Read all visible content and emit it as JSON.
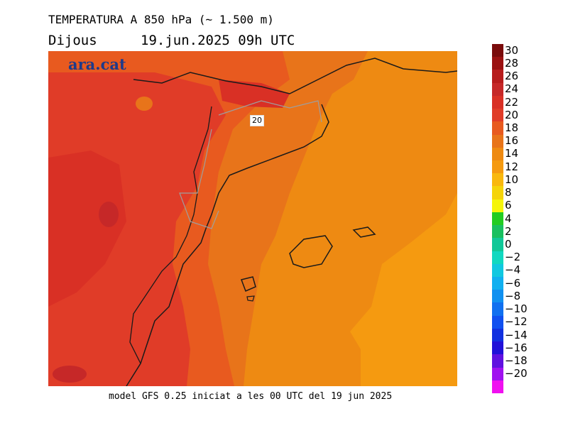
{
  "header": {
    "title": "TEMPERATURA A 850 hPa (~ 1.500 m)",
    "day": "Dijous",
    "datetime": "19.jun.2025 09h UTC"
  },
  "map": {
    "logo": "ara.cat",
    "contour_label": "20",
    "regions": {
      "inland": "#e03c28",
      "west_patch": "#d93025",
      "coast_band": "#e85a1f",
      "north_east": "#e8741a",
      "sea_main": "#ee8a12",
      "sea_south_east": "#f59a10",
      "hot_spot": "#c62828",
      "border_line": "#1a1a1a",
      "region_line": "#9e9e9e"
    }
  },
  "footer": {
    "text": "model GFS 0.25 iniciat a les 00 UTC del 19 jun 2025"
  },
  "legend": {
    "labels": [
      "30",
      "28",
      "26",
      "24",
      "22",
      "20",
      "18",
      "16",
      "14",
      "12",
      "10",
      "8",
      "6",
      "4",
      "2",
      "0",
      "−2",
      "−4",
      "−6",
      "−8",
      "−10",
      "−12",
      "−14",
      "−16",
      "−18",
      "−20"
    ],
    "colors": [
      "#7a0b0b",
      "#9b1111",
      "#b71c1c",
      "#c62828",
      "#d93025",
      "#e03c28",
      "#e85a1f",
      "#e8741a",
      "#ee8a12",
      "#f59a10",
      "#f9b80e",
      "#f5d40a",
      "#f5f50a",
      "#22cc22",
      "#19c060",
      "#10c898",
      "#10d8c0",
      "#10c8e0",
      "#10b0f0",
      "#1090f0",
      "#1070f0",
      "#1050f0",
      "#1030e0",
      "#2010d8",
      "#6010e0",
      "#a010f0",
      "#f010f0"
    ]
  }
}
